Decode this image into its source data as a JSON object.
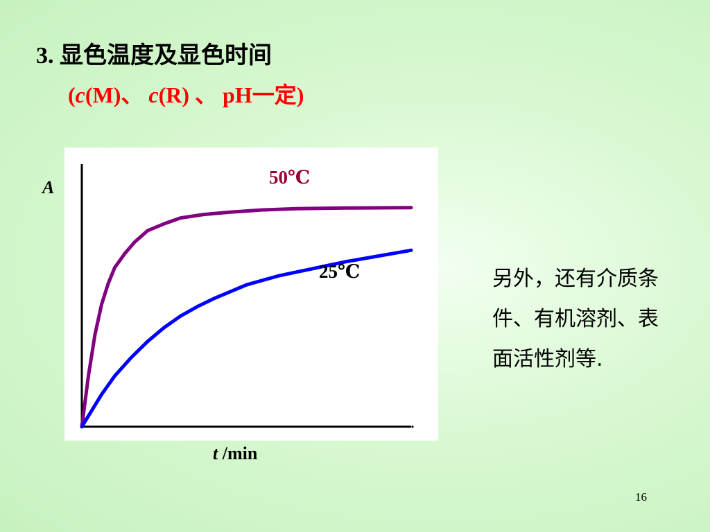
{
  "slide": {
    "title": "3. 显色温度及显色时间",
    "subtitle": {
      "open": "(",
      "c1": "c",
      "m": "(M)、 ",
      "c2": "c",
      "r": "(R) 、 pH一定)"
    },
    "side_text": "另外，还有介质条件、有机溶剂、表面活性剂等.",
    "page_number": "16"
  },
  "chart_data": {
    "type": "line",
    "ylabel": "A",
    "xlabel": {
      "var": "t",
      "unit": " /min"
    },
    "x_axis_arrow": true,
    "grid": false,
    "series": [
      {
        "name": "50℃",
        "color": "#800080",
        "x": [
          0,
          2,
          4,
          6,
          8,
          10,
          13,
          16,
          20,
          25,
          30,
          37,
          45,
          55,
          65,
          80,
          100
        ],
        "y": [
          0,
          0.22,
          0.4,
          0.53,
          0.62,
          0.69,
          0.75,
          0.8,
          0.85,
          0.88,
          0.905,
          0.92,
          0.93,
          0.94,
          0.945,
          0.948,
          0.95
        ]
      },
      {
        "name": "25℃",
        "color": "#0000ff",
        "x": [
          0,
          3,
          6,
          10,
          15,
          20,
          25,
          30,
          35,
          40,
          45,
          50,
          55,
          60,
          70,
          80,
          90,
          100
        ],
        "y": [
          0,
          0.07,
          0.14,
          0.22,
          0.3,
          0.37,
          0.43,
          0.48,
          0.52,
          0.555,
          0.585,
          0.615,
          0.635,
          0.655,
          0.685,
          0.715,
          0.74,
          0.765
        ]
      }
    ]
  }
}
